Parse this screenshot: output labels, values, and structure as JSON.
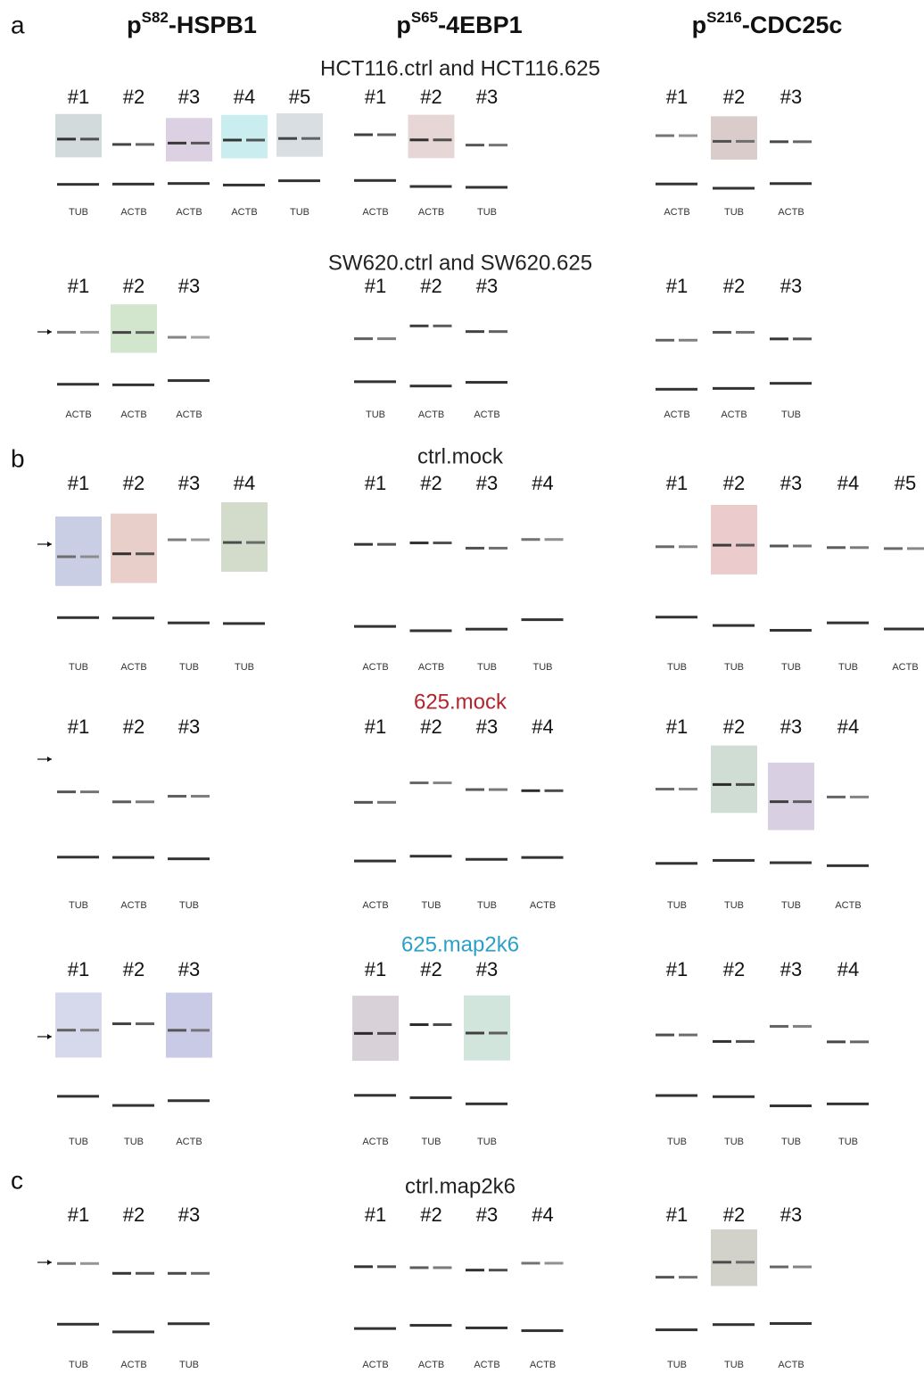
{
  "headers": [
    {
      "prefix": "p",
      "sup": "S82",
      "suffix": "-HSPB1"
    },
    {
      "prefix": "p",
      "sup": "S65",
      "suffix": "-4EBP1"
    },
    {
      "prefix": "p",
      "sup": "S216",
      "suffix": "-CDC25c"
    }
  ],
  "sections": [
    {
      "panel": "a",
      "title": "HCT116.ctrl and HCT116.625",
      "color": "#222222",
      "columns": [
        [
          {
            "lane": "#1",
            "loading": "TUB"
          },
          {
            "lane": "#2",
            "loading": "ACTB"
          },
          {
            "lane": "#3",
            "loading": "ACTB"
          },
          {
            "lane": "#4",
            "loading": "ACTB"
          },
          {
            "lane": "#5",
            "loading": "TUB"
          }
        ],
        [
          {
            "lane": "#1",
            "loading": "ACTB"
          },
          {
            "lane": "#2",
            "loading": "ACTB"
          },
          {
            "lane": "#3",
            "loading": "TUB"
          }
        ],
        [
          {
            "lane": "#1",
            "loading": "ACTB"
          },
          {
            "lane": "#2",
            "loading": "TUB"
          },
          {
            "lane": "#3",
            "loading": "ACTB"
          }
        ]
      ]
    },
    {
      "title": "SW620.ctrl and SW620.625",
      "color": "#222222",
      "columns": [
        [
          {
            "lane": "#1",
            "loading": "ACTB"
          },
          {
            "lane": "#2",
            "loading": "ACTB"
          },
          {
            "lane": "#3",
            "loading": "ACTB"
          }
        ],
        [
          {
            "lane": "#1",
            "loading": "TUB"
          },
          {
            "lane": "#2",
            "loading": "ACTB"
          },
          {
            "lane": "#3",
            "loading": "ACTB"
          }
        ],
        [
          {
            "lane": "#1",
            "loading": "ACTB"
          },
          {
            "lane": "#2",
            "loading": "ACTB"
          },
          {
            "lane": "#3",
            "loading": "TUB"
          }
        ]
      ]
    },
    {
      "panel": "b",
      "title": "ctrl.mock",
      "color": "#222222",
      "columns": [
        [
          {
            "lane": "#1",
            "loading": "TUB"
          },
          {
            "lane": "#2",
            "loading": "ACTB"
          },
          {
            "lane": "#3",
            "loading": "TUB"
          },
          {
            "lane": "#4",
            "loading": "TUB"
          }
        ],
        [
          {
            "lane": "#1",
            "loading": "ACTB"
          },
          {
            "lane": "#2",
            "loading": "ACTB"
          },
          {
            "lane": "#3",
            "loading": "TUB"
          },
          {
            "lane": "#4",
            "loading": "TUB"
          }
        ],
        [
          {
            "lane": "#1",
            "loading": "TUB"
          },
          {
            "lane": "#2",
            "loading": "TUB"
          },
          {
            "lane": "#3",
            "loading": "TUB"
          },
          {
            "lane": "#4",
            "loading": "TUB"
          },
          {
            "lane": "#5",
            "loading": "ACTB"
          }
        ]
      ]
    },
    {
      "title": "625.mock",
      "color": "#b0262d",
      "columns": [
        [
          {
            "lane": "#1",
            "loading": "TUB"
          },
          {
            "lane": "#2",
            "loading": "ACTB"
          },
          {
            "lane": "#3",
            "loading": "TUB"
          }
        ],
        [
          {
            "lane": "#1",
            "loading": "ACTB"
          },
          {
            "lane": "#2",
            "loading": "TUB"
          },
          {
            "lane": "#3",
            "loading": "TUB"
          },
          {
            "lane": "#4",
            "loading": "ACTB"
          }
        ],
        [
          {
            "lane": "#1",
            "loading": "TUB"
          },
          {
            "lane": "#2",
            "loading": "TUB"
          },
          {
            "lane": "#3",
            "loading": "TUB"
          },
          {
            "lane": "#4",
            "loading": "ACTB"
          }
        ]
      ]
    },
    {
      "title": "625.map2k6",
      "color": "#2aa0c8",
      "columns": [
        [
          {
            "lane": "#1",
            "loading": "TUB"
          },
          {
            "lane": "#2",
            "loading": "TUB"
          },
          {
            "lane": "#3",
            "loading": "ACTB"
          }
        ],
        [
          {
            "lane": "#1",
            "loading": "ACTB"
          },
          {
            "lane": "#2",
            "loading": "TUB"
          },
          {
            "lane": "#3",
            "loading": "TUB"
          }
        ],
        [
          {
            "lane": "#1",
            "loading": "TUB"
          },
          {
            "lane": "#2",
            "loading": "TUB"
          },
          {
            "lane": "#3",
            "loading": "TUB"
          },
          {
            "lane": "#4",
            "loading": "TUB"
          }
        ]
      ]
    },
    {
      "panel": "c",
      "title": "ctrl.map2k6",
      "color": "#222222",
      "columns": [
        [
          {
            "lane": "#1",
            "loading": "TUB"
          },
          {
            "lane": "#2",
            "loading": "ACTB"
          },
          {
            "lane": "#3",
            "loading": "TUB"
          }
        ],
        [
          {
            "lane": "#1",
            "loading": "ACTB"
          },
          {
            "lane": "#2",
            "loading": "ACTB"
          },
          {
            "lane": "#3",
            "loading": "ACTB"
          },
          {
            "lane": "#4",
            "loading": "ACTB"
          }
        ],
        [
          {
            "lane": "#1",
            "loading": "TUB"
          },
          {
            "lane": "#2",
            "loading": "TUB"
          },
          {
            "lane": "#3",
            "loading": "ACTB"
          }
        ]
      ]
    }
  ]
}
